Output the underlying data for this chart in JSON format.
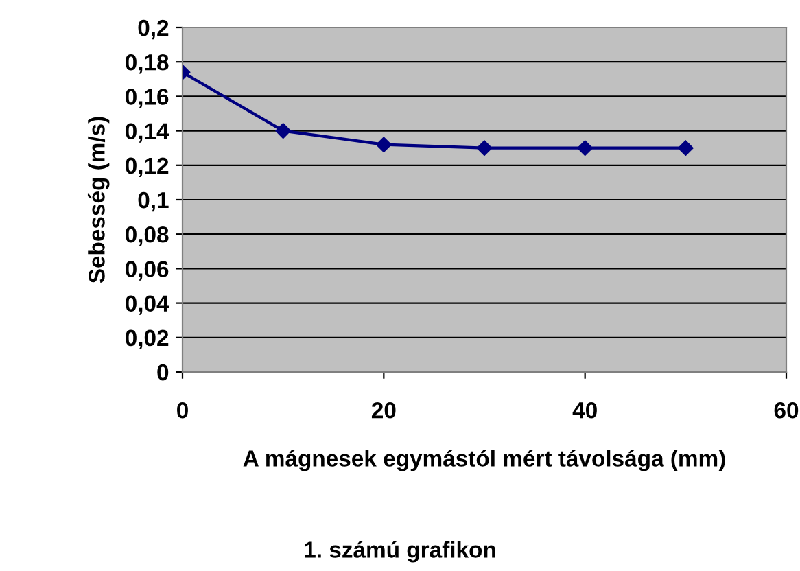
{
  "chart_data": {
    "type": "line",
    "xlabel": "A mágnesek egymástól mért távolsága (mm)",
    "ylabel": "Sebesség (m/s)",
    "annotations": [
      "1. számú grafikon"
    ],
    "x": [
      0,
      10,
      20,
      30,
      40,
      50
    ],
    "series": [
      {
        "color": "#000080",
        "values": [
          0.174,
          0.14,
          0.132,
          0.13,
          0.13,
          0.13
        ]
      }
    ],
    "xlim": [
      0,
      60
    ],
    "xticks": [
      0,
      20,
      40,
      60
    ],
    "ylim": [
      0,
      0.2
    ],
    "yticks": [
      0,
      {
        "value": 0.02,
        "label": "0,02"
      },
      {
        "value": 0.04,
        "label": "0,04"
      },
      {
        "value": 0.06,
        "label": "0,06"
      },
      {
        "value": 0.08,
        "label": "0,08"
      },
      {
        "value": 0.1,
        "label": "0,1"
      },
      {
        "value": 0.12,
        "label": "0,12"
      },
      {
        "value": 0.14,
        "label": "0,14"
      },
      {
        "value": 0.16,
        "label": "0,16"
      },
      {
        "value": 0.18,
        "label": "0,18"
      },
      {
        "value": 0.2,
        "label": "0,2"
      }
    ],
    "grid": "y",
    "marker": "diamond",
    "line_style": "solid",
    "legend": false
  }
}
